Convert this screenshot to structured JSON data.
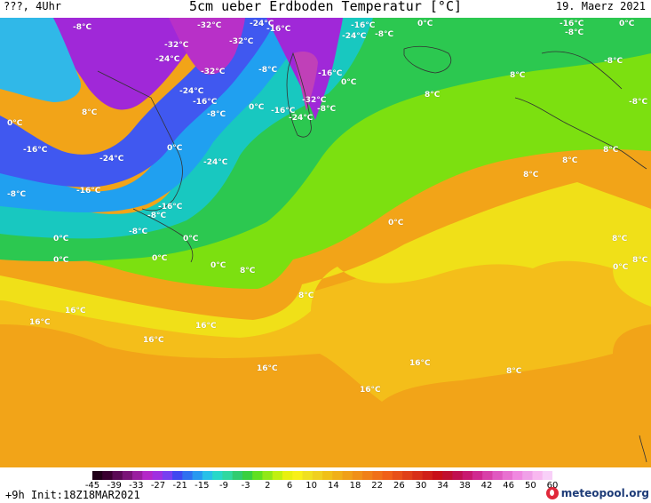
{
  "header": {
    "left": "???, 4Uhr",
    "title": "5cm ueber Erdboden Temperatur [°C]",
    "date": "19. Maerz 2021"
  },
  "map": {
    "labels": [
      {
        "text": "-8°C"
      },
      {
        "text": "-32°C"
      },
      {
        "text": "-24°C"
      },
      {
        "text": "-16°C"
      },
      {
        "text": "-16°C"
      },
      {
        "text": "-24°C"
      },
      {
        "text": "-8°C"
      },
      {
        "text": "0°C"
      },
      {
        "text": "-16°C"
      },
      {
        "text": "-8°C"
      },
      {
        "text": "0°C"
      },
      {
        "text": "-32°C"
      },
      {
        "text": "-32°C"
      },
      {
        "text": "-24°C"
      },
      {
        "text": "-32°C"
      },
      {
        "text": "-8°C"
      },
      {
        "text": "-16°C"
      },
      {
        "text": "8°C"
      },
      {
        "text": "0°C"
      },
      {
        "text": "-8°C"
      },
      {
        "text": "-24°C"
      },
      {
        "text": "-16°C"
      },
      {
        "text": "-8°C"
      },
      {
        "text": "0°C"
      },
      {
        "text": "-16°C"
      },
      {
        "text": "-32°C"
      },
      {
        "text": "-24°C"
      },
      {
        "text": "-8°C"
      },
      {
        "text": "8°C"
      },
      {
        "text": "-8°C"
      },
      {
        "text": "-16°C"
      },
      {
        "text": "-24°C"
      },
      {
        "text": "0°C"
      },
      {
        "text": "-24°C"
      },
      {
        "text": "8°C"
      },
      {
        "text": "0°C"
      },
      {
        "text": "-8°C"
      },
      {
        "text": "-16°C"
      },
      {
        "text": "8°C"
      },
      {
        "text": "8°C"
      },
      {
        "text": "8°C"
      },
      {
        "text": "-16°C"
      },
      {
        "text": "-8°C"
      },
      {
        "text": "-8°C"
      },
      {
        "text": "0°C"
      },
      {
        "text": "0°C"
      },
      {
        "text": "0°C"
      },
      {
        "text": "0°C"
      },
      {
        "text": "0°C"
      },
      {
        "text": "8°C"
      },
      {
        "text": "0°C"
      },
      {
        "text": "0°C"
      },
      {
        "text": "8°C"
      },
      {
        "text": "8°C"
      },
      {
        "text": "8°C"
      },
      {
        "text": "16°C"
      },
      {
        "text": "16°C"
      },
      {
        "text": "16°C"
      },
      {
        "text": "16°C"
      },
      {
        "text": "16°C"
      },
      {
        "text": "16°C"
      },
      {
        "text": "16°C"
      },
      {
        "text": "8°C"
      }
    ]
  },
  "colorbar": {
    "ticks": [
      "-45",
      "-39",
      "-33",
      "-27",
      "-21",
      "-15",
      "-9",
      "-3",
      "2",
      "6",
      "10",
      "14",
      "18",
      "22",
      "26",
      "30",
      "34",
      "38",
      "42",
      "46",
      "50",
      "60"
    ],
    "colors": [
      "#200018",
      "#3a0030",
      "#5a0a55",
      "#7a1478",
      "#9a1ea0",
      "#b428c8",
      "#a030e0",
      "#7840f0",
      "#4048f0",
      "#3070f0",
      "#2898f0",
      "#28c0e8",
      "#28d8c8",
      "#30d8a0",
      "#30cc70",
      "#38d040",
      "#60e020",
      "#90e818",
      "#c0f010",
      "#e8f010",
      "#f8f018",
      "#f0e020",
      "#f0d020",
      "#f0c018",
      "#f0b018",
      "#f0a018",
      "#f09018",
      "#f08018",
      "#f07018",
      "#f06018",
      "#e85018",
      "#e04018",
      "#d83018",
      "#d02018",
      "#c81018",
      "#c01030",
      "#c01050",
      "#c81870",
      "#d02890",
      "#d840a8",
      "#e058c0",
      "#e870d0",
      "#f088e0",
      "#f0a0e8",
      "#f8b8f0",
      "#f8d0f8"
    ],
    "init": "+9h Init:18Z18MAR2021",
    "brand": "meteopool.org"
  }
}
